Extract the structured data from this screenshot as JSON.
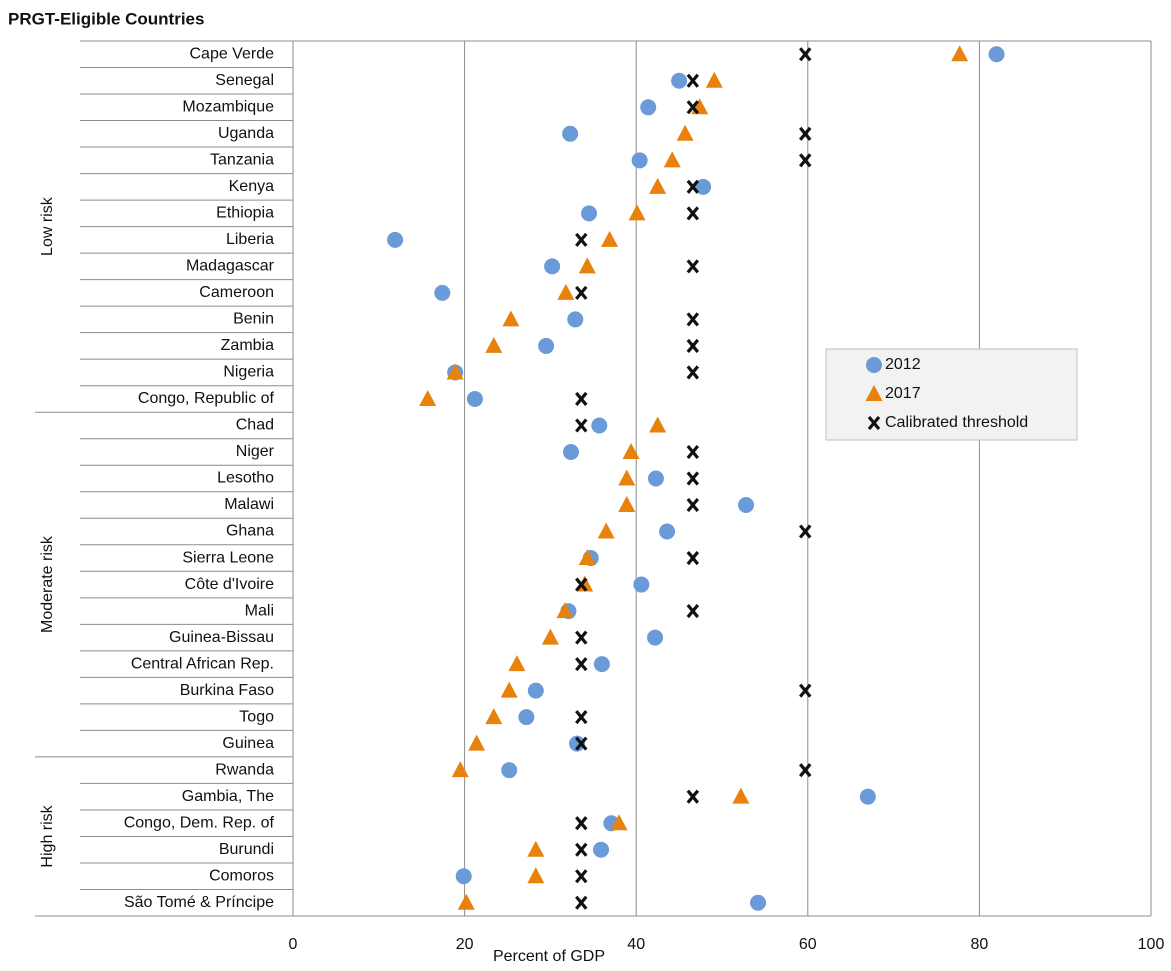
{
  "chart_data": {
    "type": "dot",
    "title": "PRGT-Eligible Countries",
    "x_label": "Percent of GDP",
    "categories": [
      "Cape Verde",
      "Senegal",
      "Mozambique",
      "Uganda",
      "Tanzania",
      "Kenya",
      "Ethiopia",
      "Liberia",
      "Madagascar",
      "Cameroon",
      "Benin",
      "Zambia",
      "Nigeria",
      "Congo, Republic of",
      "Chad",
      "Niger",
      "Lesotho",
      "Malawi",
      "Ghana",
      "Sierra Leone",
      "Côte d'Ivoire",
      "Mali",
      "Guinea-Bissau",
      "Central African Rep.",
      "Burkina Faso",
      "Togo",
      "Guinea",
      "Rwanda",
      "Gambia, The",
      "Congo, Dem. Rep. of",
      "Burundi",
      "Comoros",
      "São Tomé & Príncipe"
    ],
    "groups": [
      {
        "name": "Low risk",
        "size": 14
      },
      {
        "name": "Moderate risk",
        "size": 13
      },
      {
        "name": "High risk",
        "size": 6
      }
    ],
    "series": [
      {
        "name": "2012",
        "color": "#6a9bd8",
        "marker": "circle",
        "values": [
          82.0,
          45.0,
          41.4,
          32.3,
          40.4,
          47.8,
          34.5,
          11.9,
          30.2,
          17.4,
          32.9,
          29.5,
          18.9,
          21.2,
          35.7,
          32.4,
          42.3,
          52.8,
          43.6,
          34.7,
          40.6,
          32.1,
          42.2,
          36.0,
          28.3,
          27.2,
          33.1,
          25.2,
          67.0,
          37.1,
          35.9,
          19.9,
          54.2
        ]
      },
      {
        "name": "2017",
        "color": "#e8820c",
        "marker": "triangle",
        "values": [
          77.7,
          49.1,
          47.4,
          45.7,
          44.2,
          42.5,
          40.1,
          36.9,
          34.3,
          31.8,
          25.4,
          23.4,
          18.9,
          15.7,
          42.5,
          39.4,
          38.9,
          38.9,
          36.5,
          34.3,
          34.0,
          31.7,
          30.0,
          26.1,
          25.2,
          23.4,
          21.4,
          19.5,
          52.2,
          38.0,
          28.3,
          28.3,
          20.2
        ]
      },
      {
        "name": "Calibrated threshold",
        "color": "#111111",
        "marker": "x",
        "values": [
          59.7,
          46.6,
          46.6,
          59.7,
          59.7,
          46.6,
          46.6,
          33.6,
          46.6,
          33.6,
          46.6,
          46.6,
          46.6,
          33.6,
          33.6,
          46.6,
          46.6,
          46.6,
          59.7,
          46.6,
          33.6,
          46.6,
          33.6,
          33.6,
          59.7,
          33.6,
          33.6,
          59.7,
          46.6,
          33.6,
          33.6,
          33.6,
          33.6
        ]
      }
    ],
    "xlim": [
      0,
      100
    ],
    "xticks": [
      0,
      20,
      40,
      60,
      80,
      100
    ],
    "grid": true,
    "legend": "center right"
  }
}
